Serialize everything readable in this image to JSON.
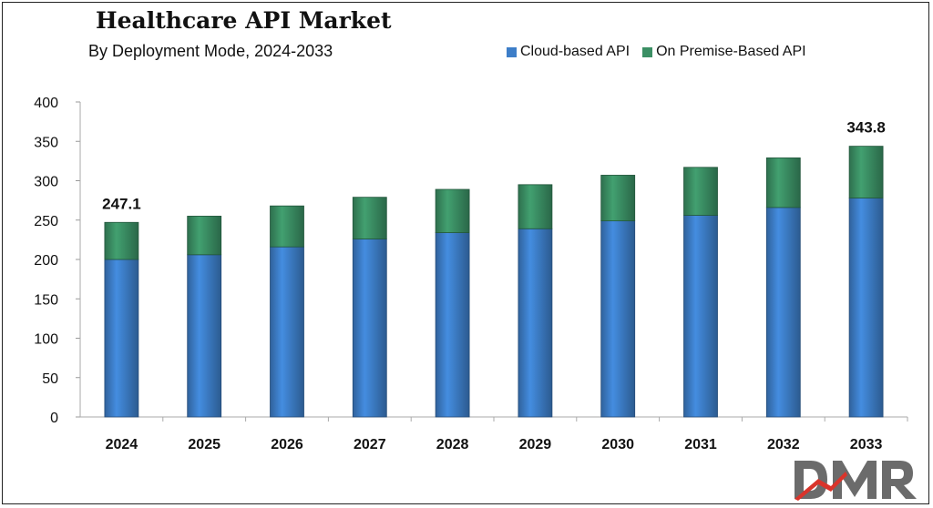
{
  "chart_data": {
    "type": "bar",
    "stacked": true,
    "title": "Healthcare API Market",
    "subtitle": "By Deployment Mode, 2024-2033",
    "categories": [
      "2024",
      "2025",
      "2026",
      "2027",
      "2028",
      "2029",
      "2030",
      "2031",
      "2032",
      "2033"
    ],
    "series": [
      {
        "name": "Cloud-based API",
        "color": "#3d7ec8",
        "values": [
          200,
          206,
          216,
          226,
          234,
          239,
          249,
          256,
          266,
          278
        ]
      },
      {
        "name": "On Premise-Based API",
        "color": "#3b8f64",
        "values": [
          47.1,
          49,
          52,
          53,
          55,
          56,
          58,
          61,
          63,
          65.8
        ]
      }
    ],
    "data_labels": [
      {
        "category": "2024",
        "text": "247.1"
      },
      {
        "category": "2033",
        "text": "343.8"
      }
    ],
    "y_ticks": [
      0,
      50,
      100,
      150,
      200,
      250,
      300,
      350,
      400
    ],
    "ylim": [
      0,
      400
    ],
    "grid": false,
    "legend_position": "top-right"
  },
  "logo": {
    "text": "DMR",
    "color": "#6b6b6b",
    "accent": "#d9342b"
  }
}
